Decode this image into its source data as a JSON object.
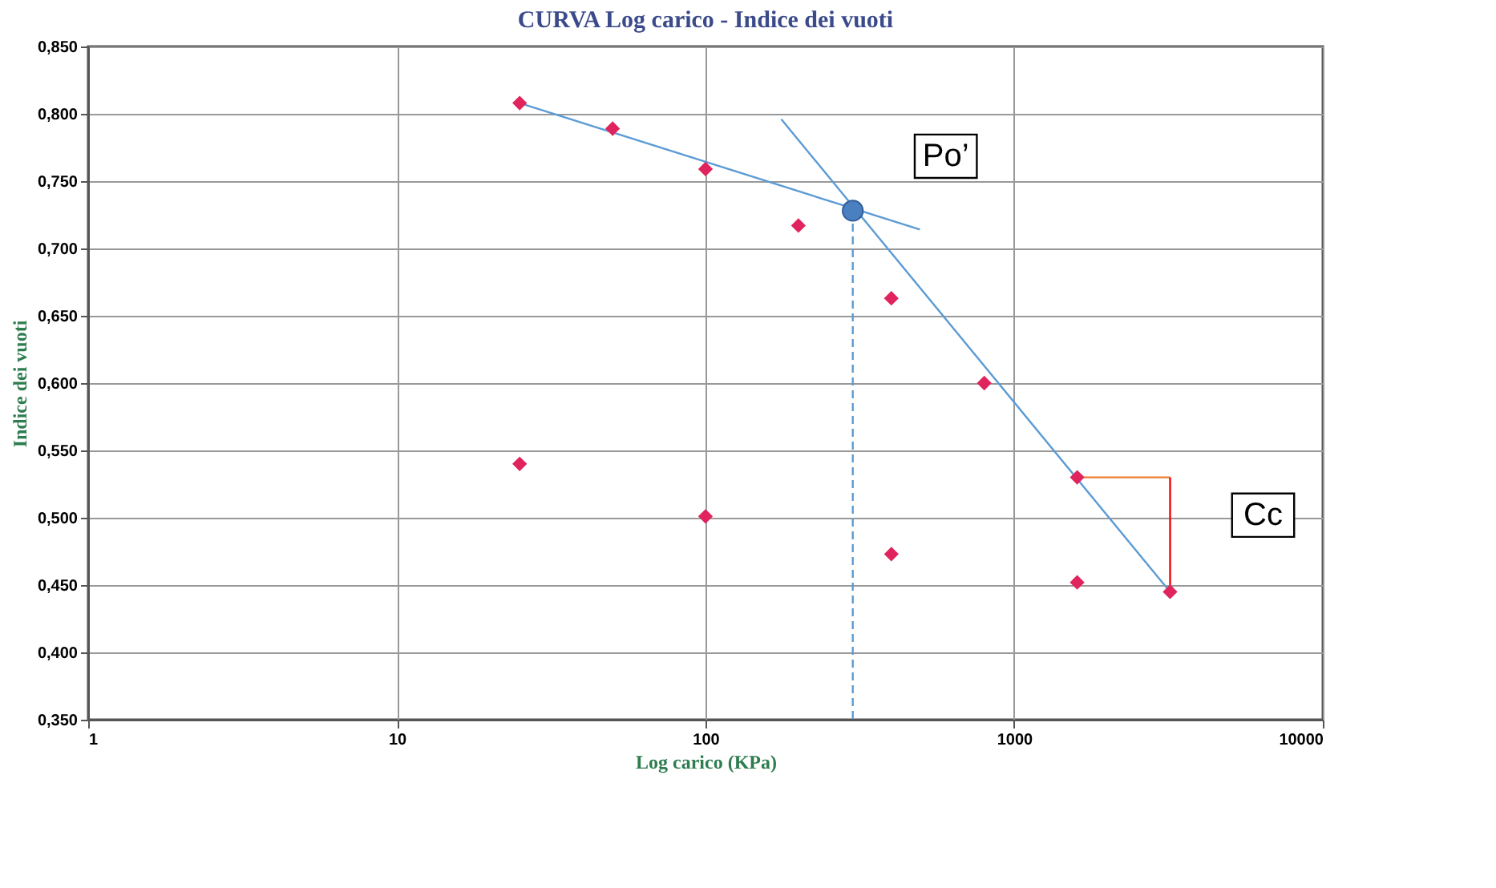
{
  "chart_data": {
    "type": "scatter",
    "title": "CURVA Log carico - Indice dei vuoti",
    "xlabel": "Log carico (KPa)",
    "ylabel": "Indice dei vuoti",
    "log": "x",
    "grid": true,
    "xlim": [
      1,
      10000
    ],
    "xticks": [
      1,
      10,
      100,
      1000,
      10000
    ],
    "ylim": [
      0.35,
      0.85
    ],
    "yticks": [
      {
        "value": 0.35,
        "label": "0,350"
      },
      {
        "value": 0.4,
        "label": "0,400"
      },
      {
        "value": 0.45,
        "label": "0,450"
      },
      {
        "value": 0.5,
        "label": "0,500"
      },
      {
        "value": 0.55,
        "label": "0,550"
      },
      {
        "value": 0.6,
        "label": "0,600"
      },
      {
        "value": 0.65,
        "label": "0,650"
      },
      {
        "value": 0.7,
        "label": "0,700"
      },
      {
        "value": 0.75,
        "label": "0,750"
      },
      {
        "value": 0.8,
        "label": "0,800"
      },
      {
        "value": 0.85,
        "label": "0,850"
      }
    ],
    "series": [
      {
        "type": "line",
        "color": "#5b9bd5",
        "x": [
          25,
          495
        ],
        "values": [
          0.808,
          0.714
        ],
        "line_style": "solid",
        "marker": "none"
      },
      {
        "type": "line",
        "color": "#5b9bd5",
        "x": [
          176,
          3200
        ],
        "values": [
          0.796,
          0.445
        ],
        "line_style": "solid",
        "marker": "none"
      },
      {
        "type": "line",
        "color": "#5b9bd5",
        "x": [
          300,
          300
        ],
        "values": [
          0.728,
          0.35
        ],
        "line_style": "dashed",
        "marker": "none"
      },
      {
        "type": "line",
        "color": "#ed7d31",
        "x": [
          1600,
          3200
        ],
        "values": [
          0.53,
          0.53
        ],
        "line_style": "solid",
        "marker": "none"
      },
      {
        "type": "line",
        "color": "#ff0000",
        "x": [
          3200,
          3200
        ],
        "values": [
          0.53,
          0.445
        ],
        "line_style": "solid",
        "marker": "none"
      },
      {
        "color": "#e0245e",
        "marker": "diamond",
        "x": [
          25,
          50,
          100,
          200,
          400,
          800,
          1600,
          3200,
          1600,
          400,
          100,
          25
        ],
        "values": [
          0.808,
          0.789,
          0.759,
          0.717,
          0.663,
          0.6,
          0.53,
          0.445,
          0.452,
          0.473,
          0.501,
          0.54
        ]
      },
      {
        "color": "#4a7fc0",
        "marker": "circle",
        "x": [
          300
        ],
        "values": [
          0.728
        ]
      }
    ],
    "annotations": [
      {
        "text": "Po’",
        "x": 300,
        "y": 0.728
      },
      {
        "text": "Cc",
        "x": 3200,
        "y": 0.49
      }
    ]
  }
}
